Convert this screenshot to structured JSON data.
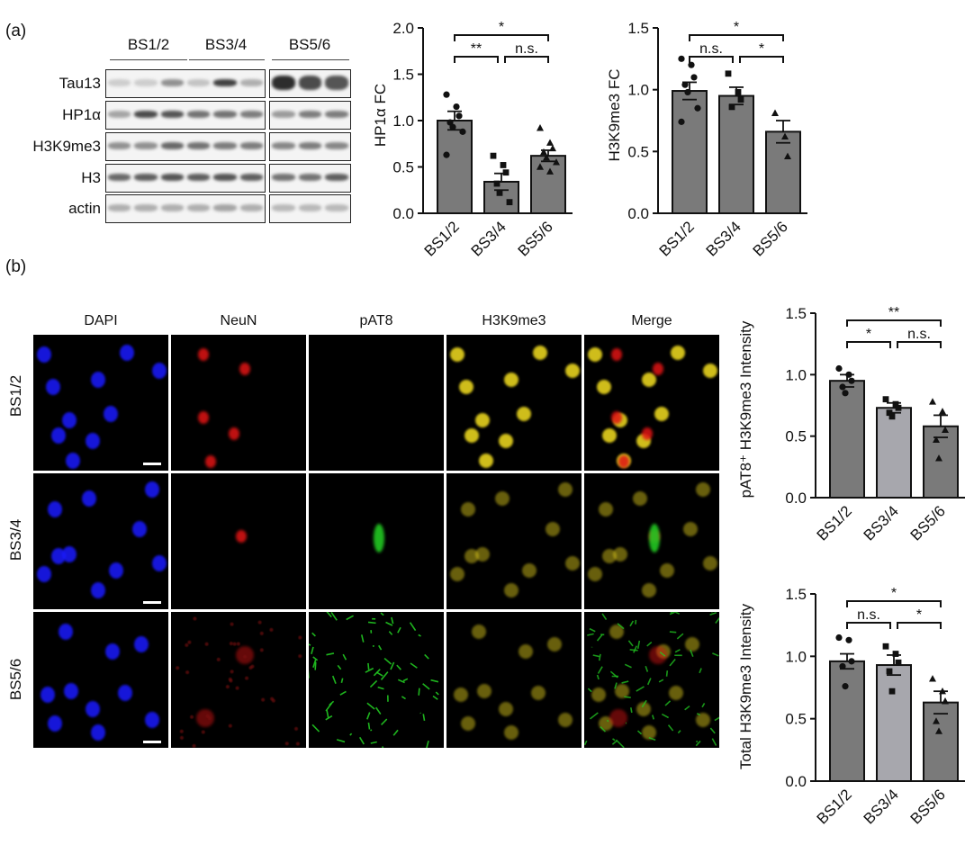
{
  "panel_labels": {
    "a": "(a)",
    "b": "(b)"
  },
  "western_blot": {
    "groups": [
      "BS1/2",
      "BS3/4",
      "BS5/6"
    ],
    "rows": [
      "Tau13",
      "HP1α",
      "H3K9me3",
      "H3",
      "actin"
    ]
  },
  "microscopy": {
    "columns": [
      "DAPI",
      "NeuN",
      "pAT8",
      "H3K9me3",
      "Merge"
    ],
    "rows": [
      "BS1/2",
      "BS3/4",
      "BS5/6"
    ],
    "column_colors": [
      "#1a1aff",
      "#e01414",
      "#22c822",
      "#e6d21e",
      "#e6c81e"
    ]
  },
  "colors": {
    "bar_dark": "#7a7a7a",
    "bar_light": "#a7a7ad",
    "axis": "#111111"
  },
  "chart_data": [
    {
      "type": "bar",
      "categories": [
        "BS1/2",
        "BS3/4",
        "BS5/6"
      ],
      "values": [
        1.0,
        0.34,
        0.62
      ],
      "sem": [
        0.1,
        0.09,
        0.06
      ],
      "points": [
        [
          1.28,
          1.15,
          1.05,
          0.98,
          0.93,
          0.88,
          0.63
        ],
        [
          0.62,
          0.52,
          0.44,
          0.32,
          0.22,
          0.12
        ],
        [
          0.92,
          0.76,
          0.7,
          0.66,
          0.6,
          0.55,
          0.5,
          0.45
        ]
      ],
      "markers": [
        "circle",
        "square",
        "triangle"
      ],
      "ylabel": "HP1α FC",
      "ylim": [
        0,
        2.0
      ],
      "yticks": [
        "0.0",
        "0.5",
        "1.0",
        "1.5",
        "2.0"
      ],
      "comparisons": [
        {
          "from": 0,
          "to": 1,
          "label": "**"
        },
        {
          "from": 1,
          "to": 2,
          "label": "n.s."
        },
        {
          "from": 0,
          "to": 2,
          "label": "*"
        }
      ]
    },
    {
      "type": "bar",
      "categories": [
        "BS1/2",
        "BS3/4",
        "BS5/6"
      ],
      "values": [
        0.99,
        0.95,
        0.66
      ],
      "sem": [
        0.07,
        0.07,
        0.09
      ],
      "points": [
        [
          1.25,
          1.2,
          1.1,
          1.04,
          0.98,
          0.85,
          0.74
        ],
        [
          1.13,
          0.98,
          0.92,
          0.86
        ],
        [
          0.81,
          0.62,
          0.46
        ]
      ],
      "markers": [
        "circle",
        "square",
        "triangle"
      ],
      "ylabel": "H3K9me3 FC",
      "ylim": [
        0,
        1.5
      ],
      "yticks": [
        "0.0",
        "0.5",
        "1.0",
        "1.5"
      ],
      "comparisons": [
        {
          "from": 0,
          "to": 1,
          "label": "n.s."
        },
        {
          "from": 1,
          "to": 2,
          "label": "*"
        },
        {
          "from": 0,
          "to": 2,
          "label": "*"
        }
      ]
    },
    {
      "type": "bar",
      "categories": [
        "BS1/2",
        "BS3/4",
        "BS5/6"
      ],
      "values": [
        0.95,
        0.73,
        0.58
      ],
      "sem": [
        0.05,
        0.04,
        0.09
      ],
      "points": [
        [
          1.05,
          1.0,
          0.95,
          0.9,
          0.85
        ],
        [
          0.8,
          0.76,
          0.73,
          0.69,
          0.66
        ],
        [
          0.78,
          0.7,
          0.55,
          0.47,
          0.32
        ]
      ],
      "markers": [
        "circle",
        "square",
        "triangle"
      ],
      "ylabel": "pAT8⁺ H3K9me3 Intensity",
      "ylim": [
        0,
        1.5
      ],
      "yticks": [
        "0.0",
        "0.5",
        "1.0",
        "1.5"
      ],
      "comparisons": [
        {
          "from": 0,
          "to": 1,
          "label": "*"
        },
        {
          "from": 1,
          "to": 2,
          "label": "n.s."
        },
        {
          "from": 0,
          "to": 2,
          "label": "**"
        }
      ]
    },
    {
      "type": "bar",
      "categories": [
        "BS1/2",
        "BS3/4",
        "BS5/6"
      ],
      "values": [
        0.96,
        0.93,
        0.63
      ],
      "sem": [
        0.06,
        0.08,
        0.09
      ],
      "points": [
        [
          1.15,
          1.13,
          0.96,
          0.92,
          0.76
        ],
        [
          1.08,
          1.02,
          0.95,
          0.88,
          0.72
        ],
        [
          0.82,
          0.72,
          0.64,
          0.48,
          0.4
        ]
      ],
      "markers": [
        "circle",
        "square",
        "triangle"
      ],
      "ylabel": "Total H3K9me3 Intensity",
      "ylim": [
        0,
        1.5
      ],
      "yticks": [
        "0.0",
        "0.5",
        "1.0",
        "1.5"
      ],
      "comparisons": [
        {
          "from": 0,
          "to": 1,
          "label": "n.s."
        },
        {
          "from": 1,
          "to": 2,
          "label": "*"
        },
        {
          "from": 0,
          "to": 2,
          "label": "*"
        }
      ]
    }
  ]
}
